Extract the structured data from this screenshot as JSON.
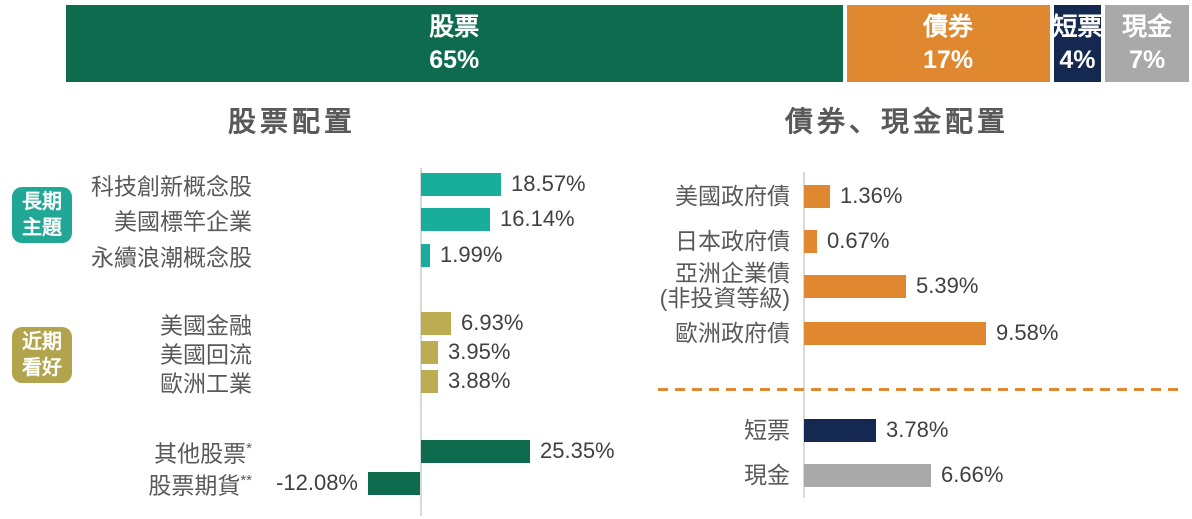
{
  "colors": {
    "equity_green": "#0E6B4E",
    "bond_orange": "#E0882F",
    "bills_navy": "#152850",
    "cash_gray": "#A9A9A9",
    "theme_teal_bar": "#19AE9B",
    "theme_teal_badge": "#21A795",
    "favor_olive_bar": "#BDAD52",
    "favor_olive_badge": "#B1A44C",
    "label_text": "#595959",
    "value_text": "#404040",
    "axis_line": "#D9D9D9"
  },
  "top_bar": {
    "segments": [
      {
        "label": "股票",
        "value_label": "65%",
        "pct": 65
      },
      {
        "label": "債券",
        "value_label": "17%",
        "pct": 17
      },
      {
        "label": "短票",
        "value_label": "4%",
        "pct": 4
      },
      {
        "label": "現金",
        "value_label": "7%",
        "pct": 7
      }
    ]
  },
  "equity_chart": {
    "title": "股票配置",
    "badges": [
      {
        "line1": "長期",
        "line2": "主題"
      },
      {
        "line1": "近期",
        "line2": "看好"
      }
    ],
    "rows": [
      {
        "label": "科技創新概念股",
        "sup": "",
        "value": 18.57,
        "value_label": "18.57%"
      },
      {
        "label": "美國標竿企業",
        "sup": "",
        "value": 16.14,
        "value_label": "16.14%"
      },
      {
        "label": "永續浪潮概念股",
        "sup": "",
        "value": 1.99,
        "value_label": "1.99%"
      },
      {
        "label": "美國金融",
        "sup": "",
        "value": 6.93,
        "value_label": "6.93%"
      },
      {
        "label": "美國回流",
        "sup": "",
        "value": 3.95,
        "value_label": "3.95%"
      },
      {
        "label": "歐洲工業",
        "sup": "",
        "value": 3.88,
        "value_label": "3.88%"
      },
      {
        "label": "其他股票",
        "sup": "*",
        "value": 25.35,
        "value_label": "25.35%"
      },
      {
        "label": "股票期貨",
        "sup": "**",
        "value": -12.08,
        "value_label": "-12.08%"
      }
    ]
  },
  "bond_cash_chart": {
    "title": "債券、現金配置",
    "rows": [
      {
        "label": "美國政府債",
        "value": 1.36,
        "value_label": "1.36%"
      },
      {
        "label": "日本政府債",
        "value": 0.67,
        "value_label": "0.67%"
      },
      {
        "label_line1": "亞洲企業債",
        "label_line2": "(非投資等級)",
        "value": 5.39,
        "value_label": "5.39%"
      },
      {
        "label": "歐洲政府債",
        "value": 9.58,
        "value_label": "9.58%"
      },
      {
        "label": "短票",
        "value": 3.78,
        "value_label": "3.78%"
      },
      {
        "label": "現金",
        "value": 6.66,
        "value_label": "6.66%"
      }
    ]
  },
  "chart_data": [
    {
      "type": "bar",
      "variant": "horizontal-stacked",
      "categories": [
        "股票",
        "債券",
        "短票",
        "現金"
      ],
      "values": [
        65,
        17,
        4,
        7
      ],
      "unit": "%",
      "legend_position": "inside-segments",
      "grid": false
    },
    {
      "type": "bar",
      "variant": "horizontal",
      "title": "股票配置",
      "categories": [
        "科技創新概念股",
        "美國標竿企業",
        "永續浪潮概念股",
        "美國金融",
        "美國回流",
        "歐洲工業",
        "其他股票 *",
        "股票期貨 **"
      ],
      "values": [
        18.57,
        16.14,
        1.99,
        6.93,
        3.95,
        3.88,
        25.35,
        -12.08
      ],
      "unit": "%",
      "groups": [
        {
          "label": "長期主題",
          "row_indexes": [
            0,
            1,
            2
          ]
        },
        {
          "label": "近期看好",
          "row_indexes": [
            3,
            4,
            5
          ]
        }
      ],
      "data_labels": true,
      "grid": false
    },
    {
      "type": "bar",
      "variant": "horizontal",
      "title": "債券、現金配置",
      "categories": [
        "美國政府債",
        "日本政府債",
        "亞洲企業債(非投資等級)",
        "歐洲政府債",
        "短票",
        "現金"
      ],
      "values": [
        1.36,
        0.67,
        5.39,
        9.58,
        3.78,
        6.66
      ],
      "unit": "%",
      "data_labels": true,
      "grid": false
    }
  ]
}
